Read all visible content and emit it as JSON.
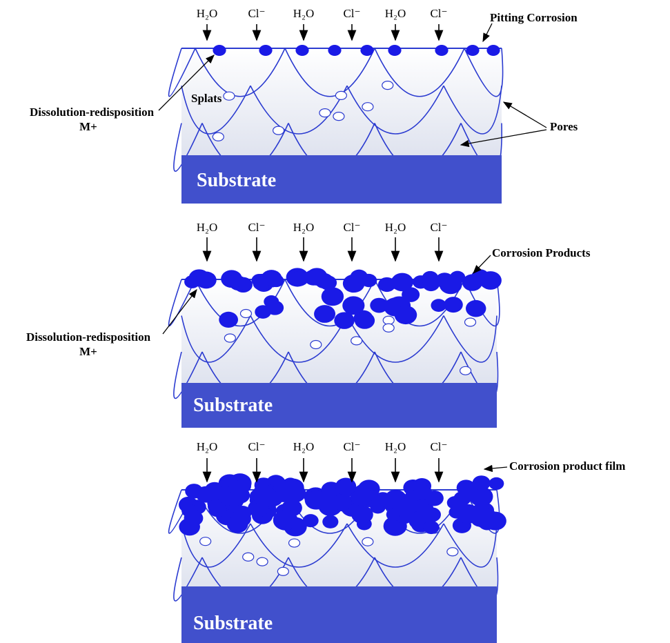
{
  "panels": [
    {
      "ions": [
        "H₂O",
        "Cl⁻",
        "H₂O",
        "Cl⁻",
        "H₂O",
        "Cl⁻"
      ],
      "labels": {
        "pitting": "Pitting Corrosion",
        "splats": "Splats",
        "dissolution": "Dissolution-redisposition",
        "ion": "M+",
        "pores": "Pores"
      },
      "substrate": "Substrate"
    },
    {
      "ions": [
        "H₂O",
        "Cl⁻",
        "H₂O",
        "Cl⁻",
        "H₂O",
        "Cl⁻"
      ],
      "labels": {
        "products": "Corrosion Products",
        "dissolution": "Dissolution-redisposition",
        "ion": "M+"
      },
      "substrate": "Substrate"
    },
    {
      "ions": [
        "H₂O",
        "Cl⁻",
        "H₂O",
        "Cl⁻",
        "H₂O",
        "Cl⁻"
      ],
      "labels": {
        "film": "Corrosion product film"
      },
      "substrate": "Substrate"
    }
  ]
}
